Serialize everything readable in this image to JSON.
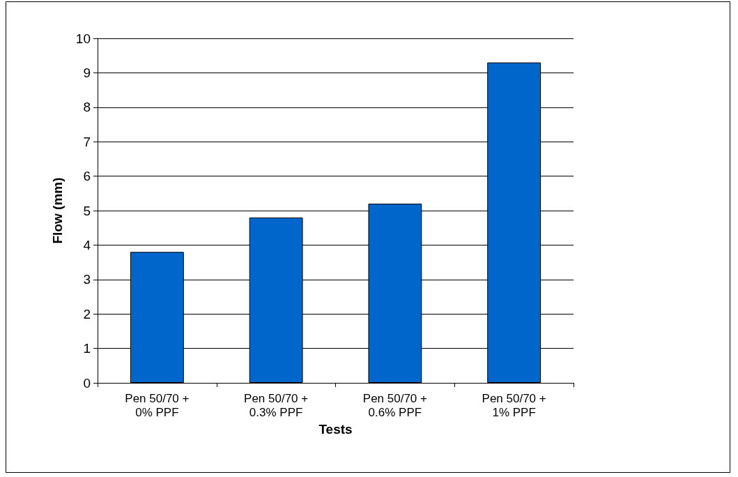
{
  "chart_data": {
    "type": "bar",
    "xlabel": "Tests",
    "ylabel": "Flow (mm)",
    "categories": [
      "Pen 50/70 +\n0% PPF",
      "Pen 50/70 +\n0.3% PPF",
      "Pen 50/70 +\n0.6% PPF",
      "Pen 50/70 +\n1% PPF"
    ],
    "values": [
      3.8,
      4.8,
      5.2,
      9.3
    ],
    "color": "#0066cc",
    "ylim": [
      0,
      10
    ],
    "yticks": [
      0,
      1,
      2,
      3,
      4,
      5,
      6,
      7,
      8,
      9,
      10
    ],
    "grid": "y"
  }
}
